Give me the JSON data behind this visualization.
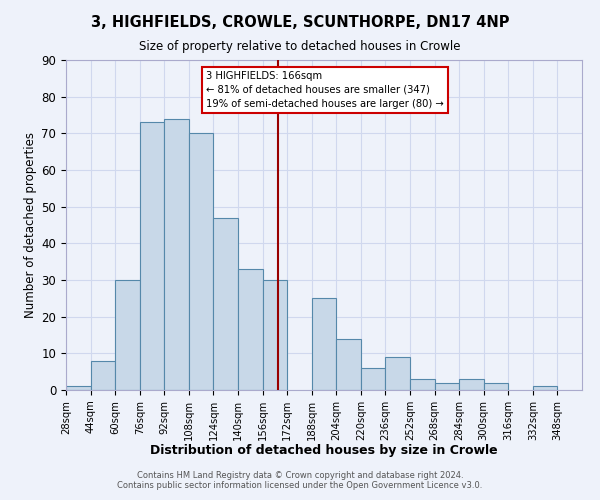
{
  "title1": "3, HIGHFIELDS, CROWLE, SCUNTHORPE, DN17 4NP",
  "title2": "Size of property relative to detached houses in Crowle",
  "xlabel": "Distribution of detached houses by size in Crowle",
  "ylabel": "Number of detached properties",
  "bin_labels": [
    "28sqm",
    "44sqm",
    "60sqm",
    "76sqm",
    "92sqm",
    "108sqm",
    "124sqm",
    "140sqm",
    "156sqm",
    "172sqm",
    "188sqm",
    "204sqm",
    "220sqm",
    "236sqm",
    "252sqm",
    "268sqm",
    "284sqm",
    "300sqm",
    "316sqm",
    "332sqm",
    "348sqm"
  ],
  "bin_edges": [
    28,
    44,
    60,
    76,
    92,
    108,
    124,
    140,
    156,
    172,
    188,
    204,
    220,
    236,
    252,
    268,
    284,
    300,
    316,
    332,
    348,
    364
  ],
  "bar_heights": [
    1,
    8,
    30,
    73,
    74,
    70,
    47,
    33,
    30,
    0,
    25,
    14,
    6,
    9,
    3,
    2,
    3,
    2,
    0,
    1,
    0
  ],
  "bar_color": "#c8d8e8",
  "bar_edge_color": "#5588aa",
  "property_size": 166,
  "vline_color": "#990000",
  "annotation_text": "3 HIGHFIELDS: 166sqm\n← 81% of detached houses are smaller (347)\n19% of semi-detached houses are larger (80) →",
  "annotation_box_color": "#ffffff",
  "annotation_box_edge_color": "#cc0000",
  "ylim": [
    0,
    90
  ],
  "yticks": [
    0,
    10,
    20,
    30,
    40,
    50,
    60,
    70,
    80,
    90
  ],
  "grid_color": "#d0d8ee",
  "background_color": "#eef2fa",
  "footer1": "Contains HM Land Registry data © Crown copyright and database right 2024.",
  "footer2": "Contains public sector information licensed under the Open Government Licence v3.0."
}
